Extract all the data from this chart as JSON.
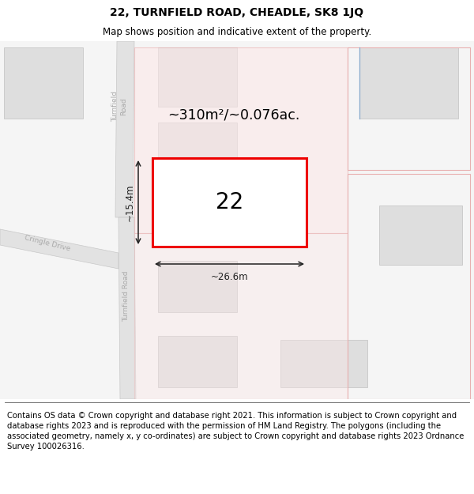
{
  "title": "22, TURNFIELD ROAD, CHEADLE, SK8 1JQ",
  "subtitle": "Map shows position and indicative extent of the property.",
  "footer": "Contains OS data © Crown copyright and database right 2021. This information is subject to Crown copyright and database rights 2023 and is reproduced with the permission of HM Land Registry. The polygons (including the associated geometry, namely x, y co-ordinates) are subject to Crown copyright and database rights 2023 Ordnance Survey 100026316.",
  "title_fontsize": 10,
  "subtitle_fontsize": 8.5,
  "footer_fontsize": 7.2,
  "map_bg": "#f5f5f5",
  "road_color": "#e2e2e2",
  "road_edge": "#c8c8c8",
  "bld_fill": "#dedede",
  "bld_edge": "#c0c0c0",
  "pink_fill": "#fce8e8",
  "pink_edge": "#e8b0b0",
  "plot_edge": "#ee0000",
  "plot_fill": "#ffffff",
  "plot_label": "22",
  "area_label": "~310m²/~0.076ac.",
  "width_label": "~26.6m",
  "height_label": "~15.4m",
  "dim_color": "#222222",
  "road_text_color": "#aaaaaa",
  "blue_line_color": "#88aacc"
}
